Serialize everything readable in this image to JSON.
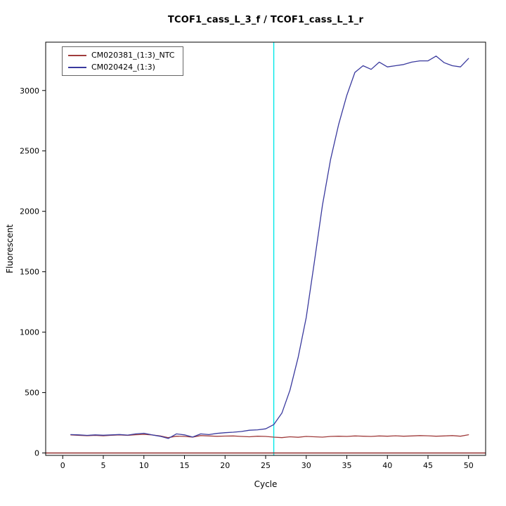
{
  "chart_data": {
    "type": "line",
    "title": "TCOF1_cass_L_3_f / TCOF1_cass_L_1_r",
    "xlabel": "Cycle",
    "ylabel": "Fluorescent",
    "xlim": [
      -2.1,
      52.1
    ],
    "ylim": [
      -20,
      3400
    ],
    "xticks": [
      0,
      5,
      10,
      15,
      20,
      25,
      30,
      35,
      40,
      45,
      50
    ],
    "yticks": [
      0,
      500,
      1000,
      1500,
      2000,
      2500,
      3000
    ],
    "grid": false,
    "legend_position": "top-left",
    "threshold_line": {
      "x": 26,
      "color": "#00e8e8"
    },
    "baseline": {
      "y": 0,
      "color": "#8b2020"
    },
    "x": [
      1,
      2,
      3,
      4,
      5,
      6,
      7,
      8,
      9,
      10,
      11,
      12,
      13,
      14,
      15,
      16,
      17,
      18,
      19,
      20,
      21,
      22,
      23,
      24,
      25,
      26,
      27,
      28,
      29,
      30,
      31,
      32,
      33,
      34,
      35,
      36,
      37,
      38,
      39,
      40,
      41,
      42,
      43,
      44,
      45,
      46,
      47,
      48,
      49,
      50
    ],
    "series": [
      {
        "name": "CM020381_(1:3)_NTC",
        "color": "#a03c3c",
        "values": [
          150,
          146,
          143,
          146,
          142,
          147,
          150,
          146,
          151,
          154,
          149,
          141,
          127,
          139,
          137,
          131,
          144,
          141,
          138,
          140,
          141,
          137,
          134,
          139,
          137,
          131,
          127,
          134,
          130,
          137,
          134,
          131,
          137,
          139,
          137,
          141,
          139,
          137,
          141,
          139,
          142,
          139,
          141,
          144,
          142,
          139,
          141,
          144,
          139,
          151
        ]
      },
      {
        "name": "CM020424_(1:3)",
        "color": "#3a3a9e",
        "values": [
          152,
          150,
          146,
          150,
          147,
          150,
          153,
          148,
          158,
          163,
          150,
          138,
          120,
          158,
          150,
          132,
          158,
          152,
          162,
          168,
          172,
          178,
          188,
          192,
          200,
          235,
          330,
          520,
          790,
          1120,
          1580,
          2050,
          2430,
          2720,
          2960,
          3150,
          3205,
          3175,
          3235,
          3195,
          3205,
          3215,
          3235,
          3245,
          3245,
          3285,
          3230,
          3205,
          3195,
          3265
        ]
      }
    ]
  }
}
